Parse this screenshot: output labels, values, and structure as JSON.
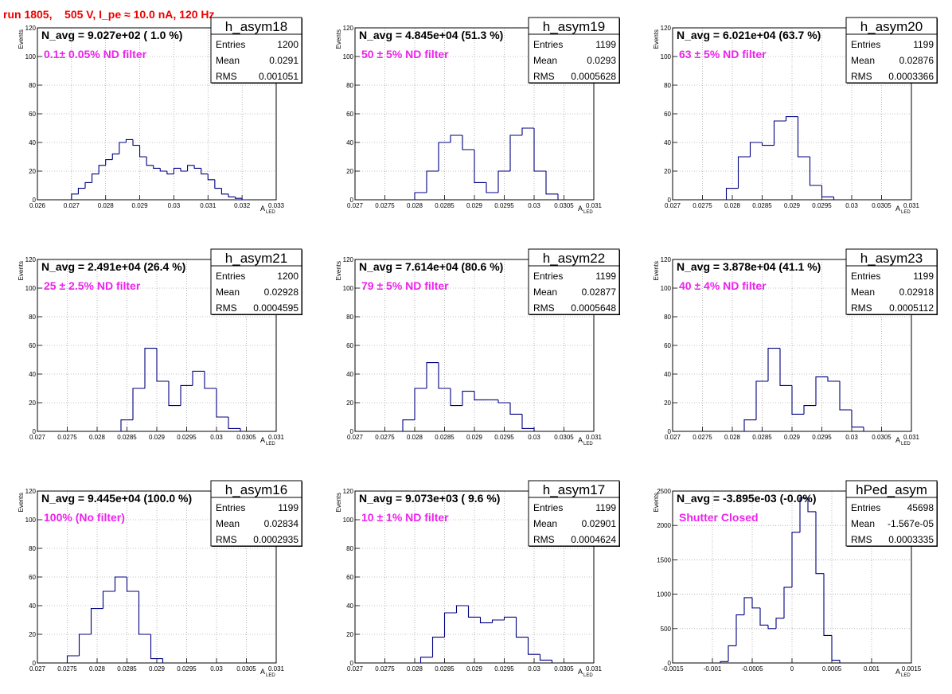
{
  "header": {
    "run_title": "run 1805,    505 V, I_pe ≈ 10.0 nA, 120 Hz"
  },
  "stat_labels": {
    "entries": "Entries",
    "mean": "Mean",
    "rms": "RMS"
  },
  "axis": {
    "ylabel": "Events",
    "xlabel": "A",
    "xlabel_sub": "LED"
  },
  "colors": {
    "line": "#000080",
    "title": "#ee0000",
    "filter": "#ee22ee",
    "grid": "#888888"
  },
  "chart_data": [
    {
      "type": "histogram",
      "name": "h_asym18",
      "navg": "N_avg = 9.027e+02 ( 1.0 %)",
      "filter": "0.1± 0.05% ND filter",
      "entries": "1200",
      "mean": "0.0291",
      "rms": "0.001051",
      "xlim": [
        0.026,
        0.033
      ],
      "ylim": [
        0,
        120
      ],
      "grid": true,
      "xticks": [
        0.026,
        0.027,
        0.028,
        0.029,
        0.03,
        0.031,
        0.032,
        0.033
      ],
      "xtick_labels": [
        "0.026",
        "0.027",
        "0.028",
        "0.029",
        "0.03",
        "0.031",
        "0.032",
        "0.033"
      ],
      "yticks": [
        0,
        20,
        40,
        60,
        80,
        100,
        120
      ],
      "ytick_labels": [
        "0",
        "20",
        "40",
        "60",
        "80",
        "100",
        "120"
      ],
      "x": [
        0.0271,
        0.0273,
        0.0275,
        0.0277,
        0.0279,
        0.0281,
        0.0283,
        0.0285,
        0.0287,
        0.0289,
        0.0291,
        0.0293,
        0.0295,
        0.0297,
        0.0299,
        0.0301,
        0.0303,
        0.0305,
        0.0307,
        0.0309,
        0.0311,
        0.0313,
        0.0315,
        0.0317,
        0.0319,
        0.0321
      ],
      "values": [
        4,
        8,
        12,
        18,
        24,
        28,
        32,
        40,
        42,
        38,
        30,
        24,
        22,
        20,
        18,
        22,
        20,
        24,
        22,
        18,
        14,
        8,
        4,
        2,
        1,
        0
      ]
    },
    {
      "type": "histogram",
      "name": "h_asym19",
      "navg": "N_avg = 4.845e+04 (51.3 %)",
      "filter": "50 ± 5% ND filter",
      "entries": "1199",
      "mean": "0.0293",
      "rms": "0.0005628",
      "xlim": [
        0.027,
        0.031
      ],
      "ylim": [
        0,
        120
      ],
      "grid": true,
      "xticks": [
        0.027,
        0.0275,
        0.028,
        0.0285,
        0.029,
        0.0295,
        0.03,
        0.0305,
        0.031
      ],
      "xtick_labels": [
        "0.027",
        "0.0275",
        "0.028",
        "0.0285",
        "0.029",
        "0.0295",
        "0.03",
        "0.0305",
        "0.031"
      ],
      "yticks": [
        0,
        20,
        40,
        60,
        80,
        100,
        120
      ],
      "ytick_labels": [
        "0",
        "20",
        "40",
        "60",
        "80",
        "100",
        "120"
      ],
      "x": [
        0.0281,
        0.0283,
        0.0285,
        0.0287,
        0.0289,
        0.0291,
        0.0293,
        0.0295,
        0.0297,
        0.0299,
        0.0301,
        0.0303
      ],
      "values": [
        5,
        20,
        40,
        45,
        35,
        12,
        5,
        20,
        45,
        50,
        20,
        4
      ]
    },
    {
      "type": "histogram",
      "name": "h_asym20",
      "navg": "N_avg = 6.021e+04 (63.7 %)",
      "filter": "63 ± 5% ND filter",
      "entries": "1199",
      "mean": "0.02876",
      "rms": "0.0003366",
      "xlim": [
        0.027,
        0.031
      ],
      "ylim": [
        0,
        120
      ],
      "grid": true,
      "xticks": [
        0.027,
        0.0275,
        0.028,
        0.0285,
        0.029,
        0.0295,
        0.03,
        0.0305,
        0.031
      ],
      "xtick_labels": [
        "0.027",
        "0.0275",
        "0.028",
        "0.0285",
        "0.029",
        "0.0295",
        "0.03",
        "0.0305",
        "0.031"
      ],
      "yticks": [
        0,
        20,
        40,
        60,
        80,
        100,
        120
      ],
      "ytick_labels": [
        "0",
        "20",
        "40",
        "60",
        "80",
        "100",
        "120"
      ],
      "x": [
        0.028,
        0.0282,
        0.0284,
        0.0286,
        0.0288,
        0.029,
        0.0292,
        0.0294,
        0.0296
      ],
      "values": [
        8,
        30,
        40,
        38,
        55,
        58,
        30,
        10,
        2
      ]
    },
    {
      "type": "histogram",
      "name": "h_asym21",
      "navg": "N_avg = 2.491e+04 (26.4 %)",
      "filter": "25 ± 2.5% ND filter",
      "entries": "1200",
      "mean": "0.02928",
      "rms": "0.0004595",
      "xlim": [
        0.027,
        0.031
      ],
      "ylim": [
        0,
        120
      ],
      "grid": true,
      "xticks": [
        0.027,
        0.0275,
        0.028,
        0.0285,
        0.029,
        0.0295,
        0.03,
        0.0305,
        0.031
      ],
      "xtick_labels": [
        "0.027",
        "0.0275",
        "0.028",
        "0.0285",
        "0.029",
        "0.0295",
        "0.03",
        "0.0305",
        "0.031"
      ],
      "yticks": [
        0,
        20,
        40,
        60,
        80,
        100,
        120
      ],
      "ytick_labels": [
        "0",
        "20",
        "40",
        "60",
        "80",
        "100",
        "120"
      ],
      "x": [
        0.0285,
        0.0287,
        0.0289,
        0.0291,
        0.0293,
        0.0295,
        0.0297,
        0.0299,
        0.0301,
        0.0303
      ],
      "values": [
        8,
        30,
        58,
        35,
        18,
        32,
        42,
        30,
        10,
        2
      ]
    },
    {
      "type": "histogram",
      "name": "h_asym22",
      "navg": "N_avg = 7.614e+04 (80.6 %)",
      "filter": "79 ± 5% ND filter",
      "entries": "1199",
      "mean": "0.02877",
      "rms": "0.0005648",
      "xlim": [
        0.027,
        0.031
      ],
      "ylim": [
        0,
        120
      ],
      "grid": true,
      "xticks": [
        0.027,
        0.0275,
        0.028,
        0.0285,
        0.029,
        0.0295,
        0.03,
        0.0305,
        0.031
      ],
      "xtick_labels": [
        "0.027",
        "0.0275",
        "0.028",
        "0.0285",
        "0.029",
        "0.0295",
        "0.03",
        "0.0305",
        "0.031"
      ],
      "yticks": [
        0,
        20,
        40,
        60,
        80,
        100,
        120
      ],
      "ytick_labels": [
        "0",
        "20",
        "40",
        "60",
        "80",
        "100",
        "120"
      ],
      "x": [
        0.0279,
        0.0281,
        0.0283,
        0.0285,
        0.0287,
        0.0289,
        0.0291,
        0.0293,
        0.0295,
        0.0297,
        0.0299
      ],
      "values": [
        8,
        30,
        48,
        30,
        18,
        28,
        22,
        22,
        20,
        12,
        2
      ]
    },
    {
      "type": "histogram",
      "name": "h_asym23",
      "navg": "N_avg = 3.878e+04 (41.1 %)",
      "filter": "40 ± 4% ND filter",
      "entries": "1199",
      "mean": "0.02918",
      "rms": "0.0005112",
      "xlim": [
        0.027,
        0.031
      ],
      "ylim": [
        0,
        120
      ],
      "grid": true,
      "xticks": [
        0.027,
        0.0275,
        0.028,
        0.0285,
        0.029,
        0.0295,
        0.03,
        0.0305,
        0.031
      ],
      "xtick_labels": [
        "0.027",
        "0.0275",
        "0.028",
        "0.0285",
        "0.029",
        "0.0295",
        "0.03",
        "0.0305",
        "0.031"
      ],
      "yticks": [
        0,
        20,
        40,
        60,
        80,
        100,
        120
      ],
      "ytick_labels": [
        "0",
        "20",
        "40",
        "60",
        "80",
        "100",
        "120"
      ],
      "x": [
        0.0283,
        0.0285,
        0.0287,
        0.0289,
        0.0291,
        0.0293,
        0.0295,
        0.0297,
        0.0299,
        0.0301
      ],
      "values": [
        8,
        35,
        58,
        32,
        12,
        18,
        38,
        35,
        15,
        3
      ]
    },
    {
      "type": "histogram",
      "name": "h_asym16",
      "navg": "N_avg = 9.445e+04 (100.0 %)",
      "filter": "100% (No filter)",
      "entries": "1199",
      "mean": "0.02834",
      "rms": "0.0002935",
      "xlim": [
        0.027,
        0.031
      ],
      "ylim": [
        0,
        120
      ],
      "grid": true,
      "xticks": [
        0.027,
        0.0275,
        0.028,
        0.0285,
        0.029,
        0.0295,
        0.03,
        0.0305,
        0.031
      ],
      "xtick_labels": [
        "0.027",
        "0.0275",
        "0.028",
        "0.0285",
        "0.029",
        "0.0295",
        "0.03",
        "0.0305",
        "0.031"
      ],
      "yticks": [
        0,
        20,
        40,
        60,
        80,
        100,
        120
      ],
      "ytick_labels": [
        "0",
        "20",
        "40",
        "60",
        "80",
        "100",
        "120"
      ],
      "x": [
        0.0276,
        0.0278,
        0.028,
        0.0282,
        0.0284,
        0.0286,
        0.0288,
        0.029
      ],
      "values": [
        5,
        20,
        38,
        50,
        60,
        50,
        20,
        3
      ]
    },
    {
      "type": "histogram",
      "name": "h_asym17",
      "navg": "N_avg = 9.073e+03 ( 9.6 %)",
      "filter": "10 ± 1% ND filter",
      "entries": "1199",
      "mean": "0.02901",
      "rms": "0.0004624",
      "xlim": [
        0.027,
        0.031
      ],
      "ylim": [
        0,
        120
      ],
      "grid": true,
      "xticks": [
        0.027,
        0.0275,
        0.028,
        0.0285,
        0.029,
        0.0295,
        0.03,
        0.0305,
        0.031
      ],
      "xtick_labels": [
        "0.027",
        "0.0275",
        "0.028",
        "0.0285",
        "0.029",
        "0.0295",
        "0.03",
        "0.0305",
        "0.031"
      ],
      "yticks": [
        0,
        20,
        40,
        60,
        80,
        100,
        120
      ],
      "ytick_labels": [
        "0",
        "20",
        "40",
        "60",
        "80",
        "100",
        "120"
      ],
      "x": [
        0.0282,
        0.0284,
        0.0286,
        0.0288,
        0.029,
        0.0292,
        0.0294,
        0.0296,
        0.0298,
        0.03,
        0.0302
      ],
      "values": [
        4,
        18,
        35,
        40,
        32,
        28,
        30,
        32,
        18,
        6,
        2
      ]
    },
    {
      "type": "histogram",
      "name": "hPed_asym",
      "navg": "N_avg = -3.895e-03 (-0.0%)",
      "filter": "Shutter Closed",
      "entries": "45698",
      "mean": "-1.567e-05",
      "rms": "0.0003335",
      "xlim": [
        -0.0015,
        0.0015
      ],
      "ylim": [
        0,
        2500
      ],
      "grid": true,
      "xticks": [
        -0.0015,
        -0.001,
        -0.0005,
        0,
        0.0005,
        0.001,
        0.0015
      ],
      "xtick_labels": [
        "-0.0015",
        "-0.001",
        "-0.0005",
        "0",
        "0.0005",
        "0.001",
        "0.0015"
      ],
      "yticks": [
        0,
        500,
        1000,
        1500,
        2000,
        2500
      ],
      "ytick_labels": [
        "0",
        "500",
        "1000",
        "1500",
        "2000",
        "2500"
      ],
      "x": [
        -0.00085,
        -0.00075,
        -0.00065,
        -0.00055,
        -0.00045,
        -0.00035,
        -0.00025,
        -0.00015,
        -5e-05,
        5e-05,
        0.00015,
        0.00025,
        0.00035,
        0.00045,
        0.00055
      ],
      "values": [
        20,
        250,
        700,
        950,
        800,
        550,
        500,
        650,
        1100,
        1900,
        2400,
        2200,
        1300,
        400,
        40
      ]
    }
  ]
}
